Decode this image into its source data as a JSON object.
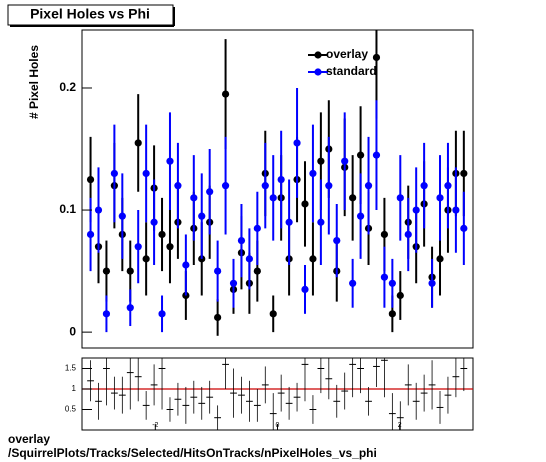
{
  "chart_data": [
    {
      "type": "scatter",
      "title": "Pixel Holes vs Phi",
      "y_label": "# Pixel Holes",
      "x": [
        -3.06,
        -2.93,
        -2.8,
        -2.67,
        -2.54,
        -2.41,
        -2.28,
        -2.15,
        -2.02,
        -1.89,
        -1.76,
        -1.63,
        -1.5,
        -1.37,
        -1.24,
        -1.11,
        -0.98,
        -0.85,
        -0.72,
        -0.59,
        -0.46,
        -0.33,
        -0.2,
        -0.07,
        0.06,
        0.19,
        0.32,
        0.45,
        0.58,
        0.71,
        0.84,
        0.97,
        1.1,
        1.23,
        1.36,
        1.49,
        1.62,
        1.75,
        1.88,
        2.01,
        2.14,
        2.27,
        2.4,
        2.53,
        2.66,
        2.79,
        2.92,
        3.05
      ],
      "series": [
        {
          "name": "overlay",
          "color": "#000000",
          "values": [
            0.125,
            0.07,
            0.05,
            0.12,
            0.08,
            0.05,
            0.155,
            0.06,
            0.118,
            0.08,
            0.07,
            0.09,
            0.03,
            0.085,
            0.06,
            0.09,
            0.012,
            0.195,
            0.035,
            0.065,
            0.04,
            0.05,
            0.13,
            0.015,
            0.11,
            0.06,
            0.125,
            0.105,
            0.06,
            0.14,
            0.15,
            0.05,
            0.135,
            0.11,
            0.145,
            0.085,
            0.225,
            0.08,
            0.015,
            0.03,
            0.09,
            0.07,
            0.105,
            0.045,
            0.06,
            0.1,
            0.13,
            0.13
          ],
          "errors": [
            0.035,
            0.03,
            0.025,
            0.035,
            0.03,
            0.025,
            0.04,
            0.03,
            0.035,
            0.03,
            0.03,
            0.03,
            0.02,
            0.03,
            0.03,
            0.03,
            0.015,
            0.045,
            0.02,
            0.03,
            0.025,
            0.025,
            0.035,
            0.015,
            0.035,
            0.03,
            0.035,
            0.035,
            0.03,
            0.04,
            0.04,
            0.025,
            0.04,
            0.035,
            0.04,
            0.03,
            0.05,
            0.03,
            0.015,
            0.02,
            0.03,
            0.03,
            0.035,
            0.025,
            0.03,
            0.035,
            0.035,
            0.035
          ]
        },
        {
          "name": "standard",
          "color": "#0000ff",
          "values": [
            0.08,
            0.1,
            0.015,
            0.13,
            0.095,
            0.02,
            0.07,
            0.13,
            0.09,
            0.015,
            0.14,
            0.12,
            0.055,
            0.11,
            0.095,
            0.115,
            0.05,
            0.12,
            0.04,
            0.075,
            0.06,
            0.085,
            0.12,
            0.11,
            0.125,
            0.09,
            0.155,
            0.035,
            0.13,
            0.09,
            0.12,
            0.075,
            0.14,
            0.04,
            0.095,
            0.12,
            0.145,
            0.045,
            0.04,
            0.11,
            0.08,
            0.1,
            0.12,
            0.04,
            0.11,
            0.12,
            0.1,
            0.085
          ],
          "errors": [
            0.03,
            0.035,
            0.015,
            0.04,
            0.035,
            0.015,
            0.03,
            0.04,
            0.035,
            0.015,
            0.04,
            0.035,
            0.025,
            0.035,
            0.035,
            0.035,
            0.025,
            0.04,
            0.02,
            0.03,
            0.025,
            0.03,
            0.035,
            0.035,
            0.04,
            0.035,
            0.045,
            0.02,
            0.04,
            0.035,
            0.04,
            0.03,
            0.04,
            0.02,
            0.035,
            0.04,
            0.045,
            0.025,
            0.02,
            0.035,
            0.03,
            0.035,
            0.035,
            0.02,
            0.035,
            0.035,
            0.035,
            0.03
          ]
        }
      ],
      "xlim": [
        -3.2,
        3.2
      ],
      "ylim": [
        -0.013,
        0.2475
      ],
      "yticks": [
        0,
        0.1,
        0.2
      ],
      "legend": "top-right"
    },
    {
      "type": "ratio",
      "x": [
        -3.06,
        -2.93,
        -2.8,
        -2.67,
        -2.54,
        -2.41,
        -2.28,
        -2.15,
        -2.02,
        -1.89,
        -1.76,
        -1.63,
        -1.5,
        -1.37,
        -1.24,
        -1.11,
        -0.98,
        -0.85,
        -0.72,
        -0.59,
        -0.46,
        -0.33,
        -0.2,
        -0.07,
        0.06,
        0.19,
        0.32,
        0.45,
        0.58,
        0.71,
        0.84,
        0.97,
        1.1,
        1.23,
        1.36,
        1.49,
        1.62,
        1.75,
        1.88,
        2.01,
        2.14,
        2.27,
        2.4,
        2.53,
        2.66,
        2.79,
        2.92,
        3.05
      ],
      "values": [
        1.2,
        0.7,
        1.5,
        0.9,
        0.85,
        1.4,
        1.3,
        0.6,
        1.1,
        1.5,
        0.5,
        0.75,
        0.6,
        0.8,
        0.65,
        0.8,
        0.3,
        1.6,
        0.9,
        0.85,
        0.7,
        0.6,
        1.1,
        0.4,
        0.9,
        0.65,
        0.8,
        1.6,
        0.5,
        1.5,
        1.25,
        0.7,
        0.95,
        1.6,
        1.5,
        0.7,
        1.55,
        1.7,
        0.4,
        0.3,
        1.1,
        0.7,
        0.9,
        1.1,
        0.55,
        0.85,
        1.3,
        1.5
      ],
      "errors": [
        0.5,
        0.45,
        0.9,
        0.4,
        0.45,
        0.9,
        0.6,
        0.35,
        0.5,
        1.0,
        0.3,
        0.4,
        0.45,
        0.4,
        0.4,
        0.4,
        0.3,
        0.6,
        0.6,
        0.45,
        0.5,
        0.4,
        0.45,
        0.5,
        0.45,
        0.4,
        0.35,
        0.9,
        0.35,
        0.6,
        0.5,
        0.4,
        0.45,
        0.8,
        0.6,
        0.35,
        0.5,
        0.9,
        0.5,
        0.4,
        0.5,
        0.45,
        0.45,
        0.6,
        0.4,
        0.45,
        0.5,
        0.55
      ],
      "color": "#000000",
      "reference_line": 1,
      "reference_color": "#cc0000",
      "xlim": [
        -3.2,
        3.2
      ],
      "xticks": [
        -2,
        0,
        2
      ],
      "ylim": [
        0,
        1.756
      ],
      "yticks": [
        0.5,
        1,
        1.5
      ]
    }
  ],
  "caption": [
    "overlay",
    "/SquirrelPlots/Tracks/Selected/HitsOnTracks/nPixelHoles_vs_phi"
  ]
}
